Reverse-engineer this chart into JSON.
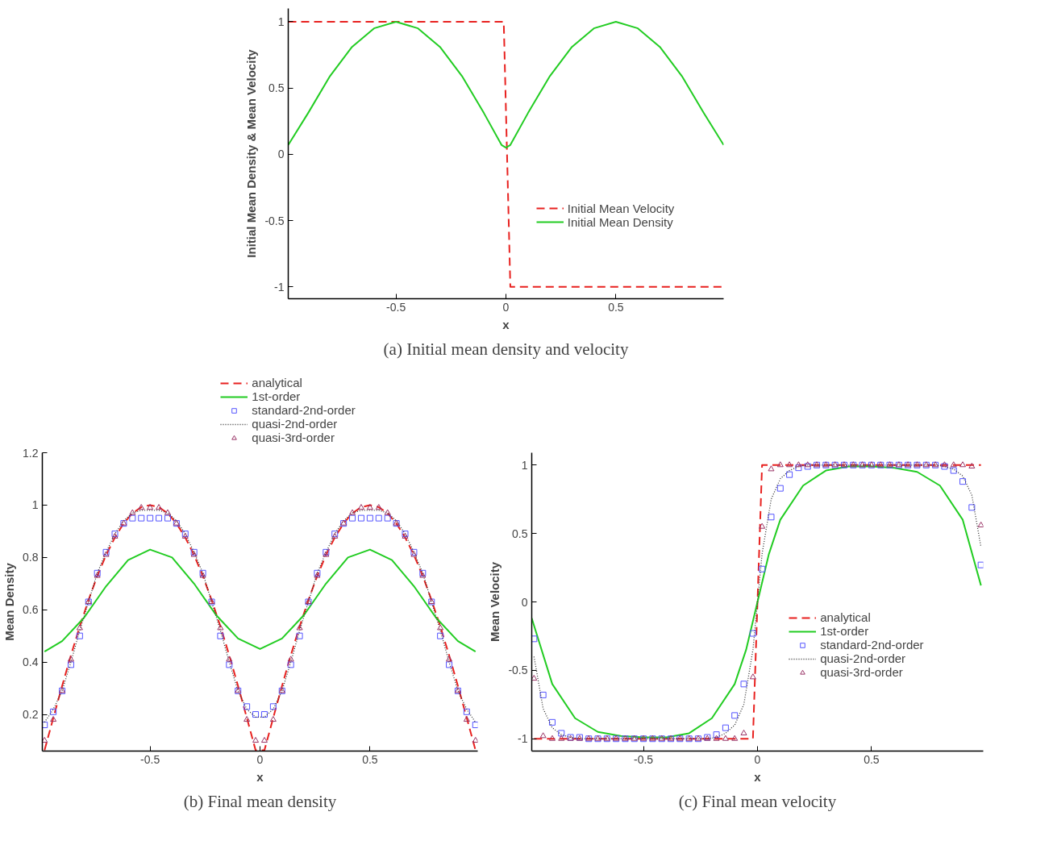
{
  "chart_data": [
    {
      "type": "line",
      "title": "(a) Initial mean density and velocity",
      "xlabel": "x",
      "ylabel": "Initial Mean Density & Mean Velocity",
      "xlim": [
        -0.99,
        0.99
      ],
      "ylim": [
        -1.09,
        1.1
      ],
      "xticks": [
        -0.5,
        0,
        0.5
      ],
      "yticks": [
        -1,
        -0.5,
        0,
        0.5,
        1
      ],
      "grid": false,
      "legend": "right",
      "series": [
        {
          "name": "Initial Mean Velocity",
          "color": "#e8211f",
          "line_style": "dashed",
          "x": [
            -0.99,
            -0.01,
            0.02,
            0.99
          ],
          "values": [
            1,
            1,
            -1,
            -1
          ]
        },
        {
          "name": "Initial Mean Density",
          "color": "#22cc22",
          "line_style": "solid",
          "x": [
            -0.99,
            -0.9,
            -0.8,
            -0.7,
            -0.6,
            -0.5,
            -0.4,
            -0.3,
            -0.2,
            -0.1,
            -0.02,
            0,
            0.02,
            0.1,
            0.2,
            0.3,
            0.4,
            0.5,
            0.6,
            0.7,
            0.8,
            0.9,
            0.99
          ],
          "values": [
            0.07,
            0.31,
            0.59,
            0.81,
            0.95,
            1.0,
            0.95,
            0.81,
            0.59,
            0.31,
            0.07,
            0.05,
            0.07,
            0.31,
            0.59,
            0.81,
            0.95,
            1.0,
            0.95,
            0.81,
            0.59,
            0.31,
            0.07
          ]
        }
      ]
    },
    {
      "type": "line",
      "title": "(b) Final mean density",
      "xlabel": "x",
      "ylabel": "Mean Density",
      "xlim": [
        -0.99,
        0.99
      ],
      "ylim": [
        0.06,
        1.2
      ],
      "xticks": [
        -0.5,
        0,
        0.5
      ],
      "yticks": [
        0.2,
        0.4,
        0.6,
        0.8,
        1,
        1.2
      ],
      "grid": false,
      "legend": "top",
      "series": [
        {
          "name": "analytical",
          "color": "#e8211f",
          "type": "line",
          "line_style": "dashed",
          "x": [
            -0.98,
            -0.94,
            -0.9,
            -0.86,
            -0.82,
            -0.78,
            -0.74,
            -0.7,
            -0.66,
            -0.62,
            -0.58,
            -0.54,
            -0.5,
            -0.46,
            -0.42,
            -0.38,
            -0.34,
            -0.3,
            -0.26,
            -0.22,
            -0.18,
            -0.14,
            -0.1,
            -0.06,
            -0.02,
            0.02,
            0.06,
            0.1,
            0.14,
            0.18,
            0.22,
            0.26,
            0.3,
            0.34,
            0.38,
            0.42,
            0.46,
            0.5,
            0.54,
            0.58,
            0.62,
            0.66,
            0.7,
            0.74,
            0.78,
            0.82,
            0.86,
            0.9,
            0.94,
            0.98
          ],
          "values": [
            0.063,
            0.187,
            0.309,
            0.426,
            0.536,
            0.637,
            0.729,
            0.809,
            0.876,
            0.93,
            0.969,
            0.992,
            1.0,
            0.992,
            0.969,
            0.93,
            0.876,
            0.809,
            0.729,
            0.637,
            0.536,
            0.426,
            0.309,
            0.187,
            0.063,
            0.063,
            0.187,
            0.309,
            0.426,
            0.536,
            0.637,
            0.729,
            0.809,
            0.876,
            0.93,
            0.969,
            0.992,
            1.0,
            0.992,
            0.969,
            0.93,
            0.876,
            0.809,
            0.729,
            0.637,
            0.536,
            0.426,
            0.309,
            0.187,
            0.063
          ]
        },
        {
          "name": "1st-order",
          "color": "#22cc22",
          "type": "line",
          "line_style": "solid",
          "x": [
            -0.98,
            -0.9,
            -0.8,
            -0.7,
            -0.6,
            -0.5,
            -0.4,
            -0.3,
            -0.2,
            -0.1,
            0,
            0.1,
            0.2,
            0.3,
            0.4,
            0.5,
            0.6,
            0.7,
            0.8,
            0.9,
            0.98
          ],
          "values": [
            0.44,
            0.48,
            0.57,
            0.69,
            0.79,
            0.83,
            0.8,
            0.7,
            0.58,
            0.49,
            0.45,
            0.49,
            0.58,
            0.7,
            0.8,
            0.83,
            0.79,
            0.69,
            0.57,
            0.48,
            0.44
          ]
        },
        {
          "name": "standard-2nd-order",
          "color": "#5555ff",
          "type": "scatter",
          "marker": "square",
          "x": [
            -0.98,
            -0.94,
            -0.9,
            -0.86,
            -0.82,
            -0.78,
            -0.74,
            -0.7,
            -0.66,
            -0.62,
            -0.58,
            -0.54,
            -0.5,
            -0.46,
            -0.42,
            -0.38,
            -0.34,
            -0.3,
            -0.26,
            -0.22,
            -0.18,
            -0.14,
            -0.1,
            -0.06,
            -0.02,
            0.02,
            0.06,
            0.1,
            0.14,
            0.18,
            0.22,
            0.26,
            0.3,
            0.34,
            0.38,
            0.42,
            0.46,
            0.5,
            0.54,
            0.58,
            0.62,
            0.66,
            0.7,
            0.74,
            0.78,
            0.82,
            0.86,
            0.9,
            0.94,
            0.98
          ],
          "values": [
            0.16,
            0.21,
            0.29,
            0.39,
            0.5,
            0.63,
            0.74,
            0.82,
            0.89,
            0.93,
            0.95,
            0.95,
            0.95,
            0.95,
            0.95,
            0.93,
            0.89,
            0.82,
            0.74,
            0.63,
            0.5,
            0.39,
            0.29,
            0.23,
            0.2,
            0.2,
            0.23,
            0.29,
            0.39,
            0.5,
            0.63,
            0.74,
            0.82,
            0.89,
            0.93,
            0.95,
            0.95,
            0.95,
            0.95,
            0.95,
            0.93,
            0.89,
            0.82,
            0.74,
            0.63,
            0.5,
            0.39,
            0.29,
            0.21,
            0.16
          ]
        },
        {
          "name": "quasi-2nd-order",
          "color": "#333333",
          "type": "line",
          "line_style": "dotted",
          "x": [
            -0.98,
            -0.94,
            -0.9,
            -0.86,
            -0.82,
            -0.78,
            -0.74,
            -0.7,
            -0.66,
            -0.62,
            -0.58,
            -0.54,
            -0.5,
            -0.46,
            -0.42,
            -0.38,
            -0.34,
            -0.3,
            -0.26,
            -0.22,
            -0.18,
            -0.14,
            -0.1,
            -0.06,
            -0.02,
            0.02,
            0.06,
            0.1,
            0.14,
            0.18,
            0.22,
            0.26,
            0.3,
            0.34,
            0.38,
            0.42,
            0.46,
            0.5,
            0.54,
            0.58,
            0.62,
            0.66,
            0.7,
            0.74,
            0.78,
            0.82,
            0.86,
            0.9,
            0.94,
            0.98
          ],
          "values": [
            0.17,
            0.22,
            0.29,
            0.4,
            0.52,
            0.63,
            0.74,
            0.82,
            0.89,
            0.94,
            0.97,
            0.98,
            0.98,
            0.98,
            0.97,
            0.94,
            0.89,
            0.82,
            0.74,
            0.63,
            0.52,
            0.4,
            0.29,
            0.22,
            0.19,
            0.19,
            0.22,
            0.29,
            0.4,
            0.52,
            0.63,
            0.74,
            0.82,
            0.89,
            0.94,
            0.97,
            0.98,
            0.98,
            0.98,
            0.97,
            0.94,
            0.89,
            0.82,
            0.74,
            0.63,
            0.52,
            0.4,
            0.29,
            0.22,
            0.17
          ]
        },
        {
          "name": "quasi-3rd-order",
          "color": "#993366",
          "type": "scatter",
          "marker": "triangle",
          "x": [
            -0.98,
            -0.94,
            -0.9,
            -0.86,
            -0.82,
            -0.78,
            -0.74,
            -0.7,
            -0.66,
            -0.62,
            -0.58,
            -0.54,
            -0.5,
            -0.46,
            -0.42,
            -0.38,
            -0.34,
            -0.3,
            -0.26,
            -0.22,
            -0.18,
            -0.14,
            -0.1,
            -0.06,
            -0.02,
            0.02,
            0.06,
            0.1,
            0.14,
            0.18,
            0.22,
            0.26,
            0.3,
            0.34,
            0.38,
            0.42,
            0.46,
            0.5,
            0.54,
            0.58,
            0.62,
            0.66,
            0.7,
            0.74,
            0.78,
            0.82,
            0.86,
            0.9,
            0.94,
            0.98
          ],
          "values": [
            0.1,
            0.18,
            0.29,
            0.41,
            0.53,
            0.63,
            0.73,
            0.81,
            0.88,
            0.93,
            0.97,
            0.99,
            0.99,
            0.99,
            0.97,
            0.93,
            0.88,
            0.81,
            0.73,
            0.63,
            0.53,
            0.41,
            0.29,
            0.18,
            0.1,
            0.1,
            0.18,
            0.29,
            0.41,
            0.53,
            0.63,
            0.73,
            0.81,
            0.88,
            0.93,
            0.97,
            0.99,
            0.99,
            0.99,
            0.97,
            0.93,
            0.88,
            0.81,
            0.73,
            0.63,
            0.53,
            0.41,
            0.29,
            0.18,
            0.1
          ]
        }
      ]
    },
    {
      "type": "line",
      "title": "(c) Final mean velocity",
      "xlabel": "x",
      "ylabel": "Mean Velocity",
      "xlim": [
        -0.99,
        0.99
      ],
      "ylim": [
        -1.09,
        1.09
      ],
      "xticks": [
        -0.5,
        0,
        0.5
      ],
      "yticks": [
        -1,
        -0.5,
        0,
        0.5,
        1
      ],
      "grid": false,
      "legend": "right",
      "series": [
        {
          "name": "analytical",
          "color": "#e8211f",
          "type": "line",
          "line_style": "dashed",
          "x": [
            -0.98,
            -0.02,
            0.02,
            0.98
          ],
          "values": [
            -1,
            -1,
            1,
            1
          ]
        },
        {
          "name": "1st-order",
          "color": "#22cc22",
          "type": "line",
          "line_style": "solid",
          "x": [
            -0.99,
            -0.9,
            -0.8,
            -0.7,
            -0.6,
            -0.5,
            -0.4,
            -0.3,
            -0.2,
            -0.1,
            -0.05,
            0,
            0.05,
            0.1,
            0.2,
            0.3,
            0.4,
            0.5,
            0.6,
            0.7,
            0.8,
            0.9,
            0.98
          ],
          "values": [
            -0.12,
            -0.6,
            -0.85,
            -0.95,
            -0.98,
            -0.99,
            -0.99,
            -0.96,
            -0.85,
            -0.6,
            -0.35,
            0,
            0.35,
            0.6,
            0.85,
            0.96,
            0.99,
            0.99,
            0.98,
            0.95,
            0.85,
            0.6,
            0.12
          ]
        },
        {
          "name": "standard-2nd-order",
          "color": "#5555ff",
          "type": "scatter",
          "marker": "square",
          "x": [
            -0.98,
            -0.94,
            -0.9,
            -0.86,
            -0.82,
            -0.78,
            -0.74,
            -0.7,
            -0.66,
            -0.62,
            -0.58,
            -0.54,
            -0.5,
            -0.46,
            -0.42,
            -0.38,
            -0.34,
            -0.3,
            -0.26,
            -0.22,
            -0.18,
            -0.14,
            -0.1,
            -0.06,
            -0.02,
            0.02,
            0.06,
            0.1,
            0.14,
            0.18,
            0.22,
            0.26,
            0.3,
            0.34,
            0.38,
            0.42,
            0.46,
            0.5,
            0.54,
            0.58,
            0.62,
            0.66,
            0.7,
            0.74,
            0.78,
            0.82,
            0.86,
            0.9,
            0.94,
            0.98
          ],
          "values": [
            -0.27,
            -0.68,
            -0.88,
            -0.96,
            -0.99,
            -0.99,
            -1,
            -1,
            -1,
            -1,
            -1,
            -1,
            -1,
            -1,
            -1,
            -1,
            -1,
            -1,
            -1,
            -0.99,
            -0.97,
            -0.92,
            -0.83,
            -0.6,
            -0.23,
            0.24,
            0.62,
            0.83,
            0.93,
            0.98,
            0.99,
            1,
            1,
            1,
            1,
            1,
            1,
            1,
            1,
            1,
            1,
            1,
            1,
            1,
            1,
            0.99,
            0.96,
            0.88,
            0.69,
            0.27
          ]
        },
        {
          "name": "quasi-2nd-order",
          "color": "#333333",
          "type": "line",
          "line_style": "dotted",
          "x": [
            -0.98,
            -0.94,
            -0.9,
            -0.86,
            -0.82,
            -0.78,
            -0.74,
            -0.7,
            -0.3,
            -0.26,
            -0.22,
            -0.18,
            -0.14,
            -0.1,
            -0.06,
            -0.02,
            0.02,
            0.06,
            0.1,
            0.14,
            0.18,
            0.22,
            0.26,
            0.7,
            0.74,
            0.78,
            0.82,
            0.86,
            0.9,
            0.94,
            0.98
          ],
          "values": [
            -0.4,
            -0.78,
            -0.92,
            -0.97,
            -0.99,
            -1,
            -1,
            -1,
            -1,
            -1,
            -1,
            -0.99,
            -0.96,
            -0.9,
            -0.75,
            -0.35,
            0.35,
            0.75,
            0.9,
            0.96,
            0.99,
            1,
            1,
            1,
            1,
            1,
            0.99,
            0.97,
            0.92,
            0.78,
            0.4
          ]
        },
        {
          "name": "quasi-3rd-order",
          "color": "#993366",
          "type": "scatter",
          "marker": "triangle",
          "x": [
            -0.98,
            -0.94,
            -0.9,
            -0.86,
            -0.82,
            -0.78,
            -0.74,
            -0.7,
            -0.66,
            -0.62,
            -0.58,
            -0.54,
            -0.5,
            -0.46,
            -0.42,
            -0.38,
            -0.34,
            -0.3,
            -0.26,
            -0.22,
            -0.18,
            -0.14,
            -0.1,
            -0.06,
            -0.02,
            0.02,
            0.06,
            0.1,
            0.14,
            0.18,
            0.22,
            0.26,
            0.3,
            0.34,
            0.38,
            0.42,
            0.46,
            0.5,
            0.54,
            0.58,
            0.62,
            0.66,
            0.7,
            0.74,
            0.78,
            0.82,
            0.86,
            0.9,
            0.94,
            0.98
          ],
          "values": [
            -0.56,
            -0.98,
            -1,
            -1,
            -1,
            -1,
            -1,
            -1,
            -1,
            -1,
            -1,
            -1,
            -1,
            -1,
            -1,
            -1,
            -1,
            -1,
            -1,
            -1,
            -1,
            -1,
            -1,
            -0.96,
            -0.55,
            0.55,
            0.97,
            1,
            1,
            1,
            1,
            1,
            1,
            1,
            1,
            1,
            1,
            1,
            1,
            1,
            1,
            1,
            1,
            1,
            1,
            1,
            1,
            1,
            0.99,
            0.56
          ]
        }
      ]
    }
  ]
}
